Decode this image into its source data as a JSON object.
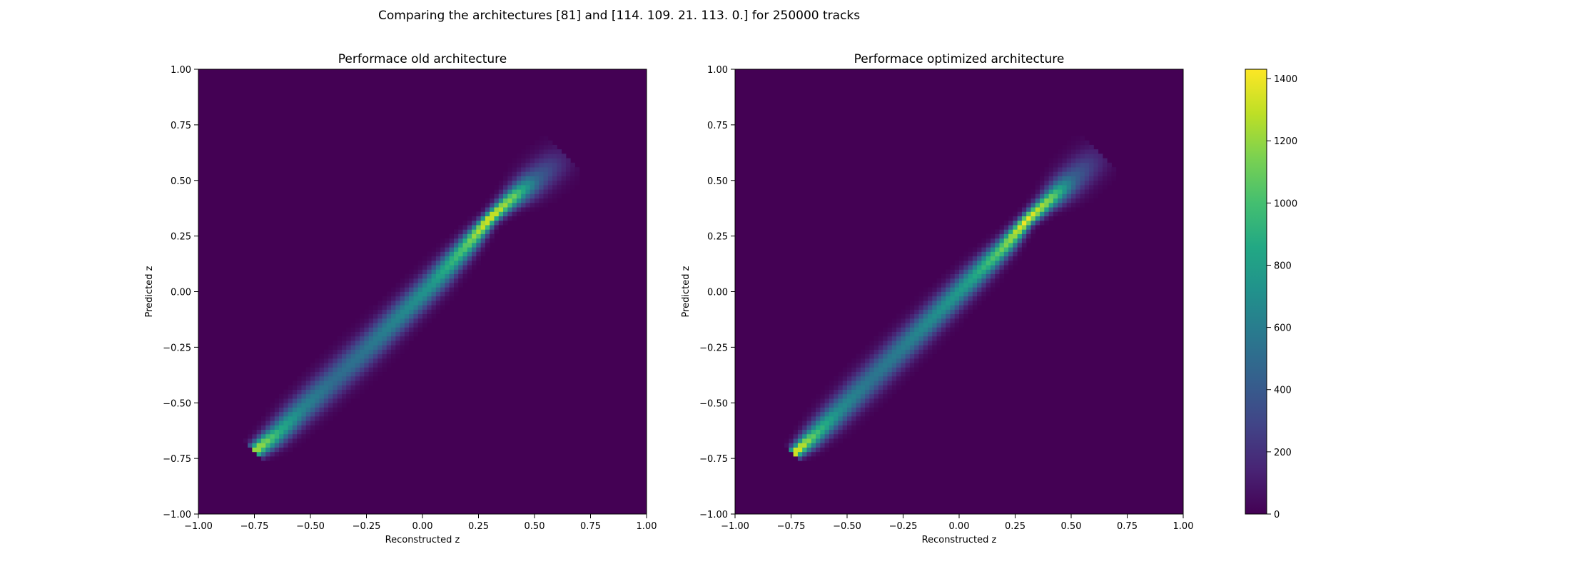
{
  "figure": {
    "suptitle": "Comparing the architectures [81] and [114. 109.  21. 113.   0.] for 250000 tracks"
  },
  "chart_data": [
    {
      "type": "heatmap",
      "title": "Performace old architecture",
      "xlabel": "Reconstructed z",
      "ylabel": "Predicted z",
      "xlim": [
        -1.0,
        1.0
      ],
      "ylim": [
        -1.0,
        1.0
      ],
      "xticks": [
        "−1.00",
        "−0.75",
        "−0.50",
        "−0.25",
        "0.00",
        "0.25",
        "0.50",
        "0.75",
        "1.00"
      ],
      "yticks": [
        "−1.00",
        "−0.75",
        "−0.50",
        "−0.25",
        "0.00",
        "0.25",
        "0.50",
        "0.75",
        "1.00"
      ],
      "bins": [
        100,
        100
      ],
      "ridge": [
        [
          -0.74,
          -0.71,
          1250
        ],
        [
          -0.65,
          -0.64,
          900
        ],
        [
          -0.55,
          -0.54,
          650
        ],
        [
          -0.4,
          -0.4,
          500
        ],
        [
          -0.25,
          -0.26,
          550
        ],
        [
          -0.1,
          -0.11,
          650
        ],
        [
          0.05,
          0.04,
          750
        ],
        [
          0.2,
          0.21,
          1050
        ],
        [
          0.3,
          0.33,
          1400
        ],
        [
          0.4,
          0.42,
          1100
        ],
        [
          0.5,
          0.5,
          450
        ],
        [
          0.62,
          0.6,
          120
        ]
      ],
      "colorscale": "viridis"
    },
    {
      "type": "heatmap",
      "title": "Performace optimized architecture",
      "xlabel": "Reconstructed z",
      "ylabel": "Predicted z",
      "xlim": [
        -1.0,
        1.0
      ],
      "ylim": [
        -1.0,
        1.0
      ],
      "xticks": [
        "−1.00",
        "−0.75",
        "−0.50",
        "−0.25",
        "0.00",
        "0.25",
        "0.50",
        "0.75",
        "1.00"
      ],
      "yticks": [
        "−1.00",
        "−0.75",
        "−0.50",
        "−0.25",
        "0.00",
        "0.25",
        "0.50",
        "0.75",
        "1.00"
      ],
      "bins": [
        100,
        100
      ],
      "ridge": [
        [
          -0.73,
          -0.72,
          1420
        ],
        [
          -0.65,
          -0.65,
          1000
        ],
        [
          -0.55,
          -0.55,
          700
        ],
        [
          -0.4,
          -0.4,
          550
        ],
        [
          -0.25,
          -0.25,
          600
        ],
        [
          -0.1,
          -0.1,
          700
        ],
        [
          0.05,
          0.05,
          800
        ],
        [
          0.2,
          0.2,
          1100
        ],
        [
          0.3,
          0.32,
          1400
        ],
        [
          0.4,
          0.41,
          1150
        ],
        [
          0.5,
          0.5,
          450
        ],
        [
          0.62,
          0.61,
          120
        ]
      ],
      "colorscale": "viridis"
    }
  ],
  "colorbar": {
    "ticks": [
      "0",
      "200",
      "400",
      "600",
      "800",
      "1000",
      "1200",
      "1400"
    ],
    "range": [
      0,
      1430
    ]
  }
}
